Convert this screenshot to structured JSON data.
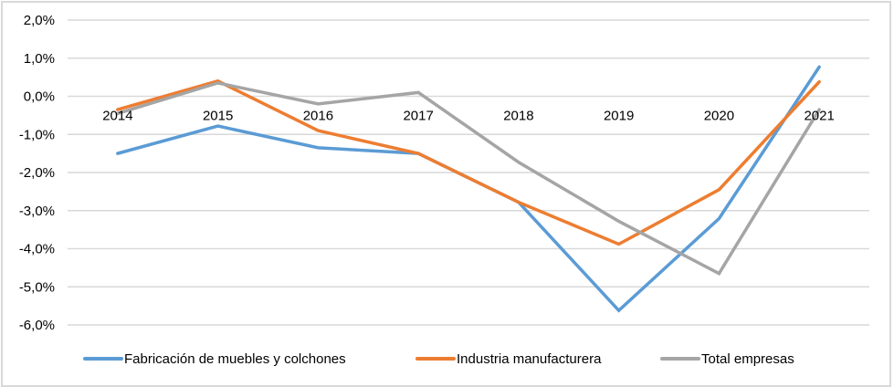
{
  "chart_data": {
    "type": "line",
    "title": "",
    "xlabel": "",
    "ylabel": "",
    "categories": [
      "2014",
      "2015",
      "2016",
      "2017",
      "2018",
      "2019",
      "2020",
      "2021"
    ],
    "ylim": [
      -6.0,
      2.0
    ],
    "yticks": [
      2.0,
      1.0,
      0.0,
      -1.0,
      -2.0,
      -3.0,
      -4.0,
      -5.0,
      -6.0
    ],
    "ytick_labels": [
      "2,0%",
      "1,0%",
      "0,0%",
      "-1,0%",
      "-2,0%",
      "-3,0%",
      "-4,0%",
      "-5,0%",
      "-6,0%"
    ],
    "grid": true,
    "legend_position": "bottom",
    "series": [
      {
        "name": "Fabricación de muebles y colchones",
        "color": "#5b9bd5",
        "values": [
          -1.5,
          -0.78,
          -1.35,
          -1.5,
          -2.78,
          -5.62,
          -3.21,
          0.77
        ]
      },
      {
        "name": "Industria manufacturera",
        "color": "#ed7d31",
        "values": [
          -0.35,
          0.4,
          -0.9,
          -1.5,
          -2.78,
          -3.88,
          -2.45,
          0.38
        ]
      },
      {
        "name": "Total empresas",
        "color": "#a5a5a5",
        "values": [
          -0.45,
          0.35,
          -0.2,
          0.1,
          -1.73,
          -3.28,
          -4.65,
          -0.35
        ]
      }
    ]
  }
}
